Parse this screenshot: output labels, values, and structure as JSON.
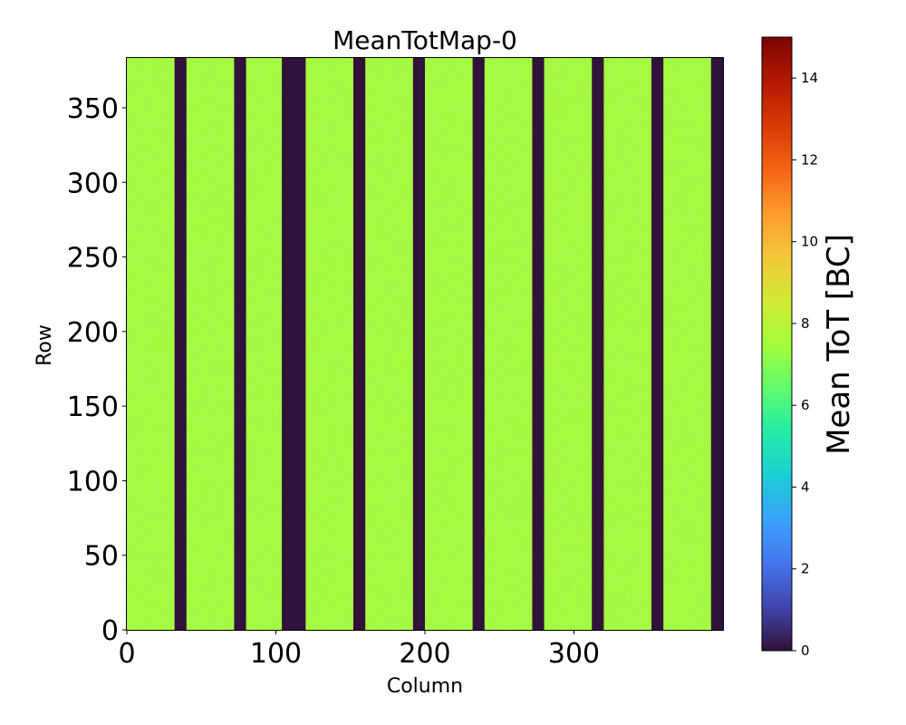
{
  "chart_data": {
    "type": "heatmap",
    "title": "MeanTotMap-0",
    "xlabel": "Column",
    "ylabel": "Row",
    "xlim": [
      0,
      400
    ],
    "ylim": [
      0,
      384
    ],
    "x_ticks": [
      0,
      100,
      200,
      300
    ],
    "y_ticks": [
      0,
      50,
      100,
      150,
      200,
      250,
      300,
      350
    ],
    "x_tick_labels": [
      "0",
      "100",
      "200",
      "300"
    ],
    "y_tick_labels": [
      "0",
      "50",
      "100",
      "150",
      "200",
      "250",
      "300",
      "350"
    ],
    "colorbar": {
      "label": "Mean ToT [BC]",
      "range": [
        0,
        15
      ],
      "ticks": [
        0,
        2,
        4,
        6,
        8,
        10,
        12,
        14
      ],
      "tick_labels": [
        "0",
        "2",
        "4",
        "6",
        "8",
        "10",
        "12",
        "14"
      ],
      "colormap": "turbo"
    },
    "typical_value": 7.5,
    "dead_column_ranges": [
      [
        32,
        40
      ],
      [
        72,
        80
      ],
      [
        104,
        120
      ],
      [
        152,
        160
      ],
      [
        192,
        200
      ],
      [
        232,
        240
      ],
      [
        272,
        280
      ],
      [
        312,
        320
      ],
      [
        352,
        360
      ],
      [
        392,
        400
      ]
    ],
    "dead_value": 0
  }
}
